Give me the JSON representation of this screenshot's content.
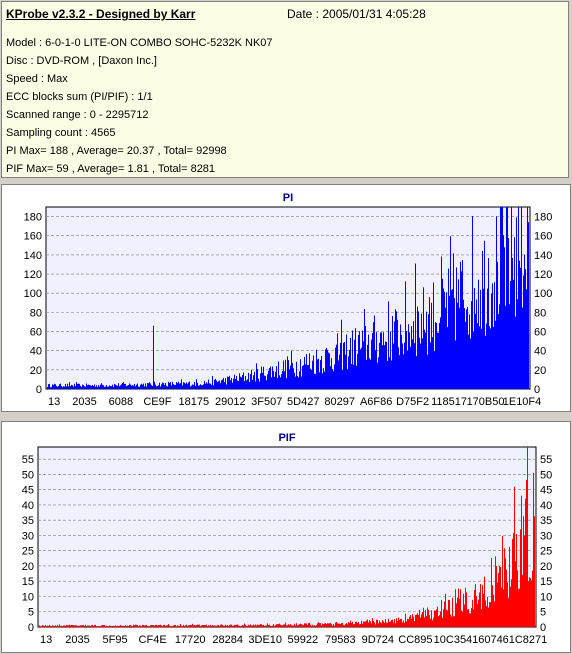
{
  "header": {
    "title": "KProbe v2.3.2 - Designed by Karr",
    "date": "Date : 2005/01/31 4:05:28"
  },
  "info_rows": [
    "Model : 6-0-1-0 LITE-ON COMBO SOHC-5232K NK07",
    "Disc : DVD-ROM ,  [Daxon Inc.]",
    "Speed : Max",
    "ECC blocks sum (PI/PIF) : 1/1",
    "Scanned range : 0 - 2295712",
    "Sampling count : 4565",
    "PI Max= 188 , Average= 20.37 , Total= 92998",
    "PIF Max= 59 , Average= 1.81 , Total= 8281"
  ],
  "chart_data": [
    {
      "type": "bar",
      "title": "PI",
      "color": "#0000ff",
      "ylim": [
        0,
        190
      ],
      "yticks": [
        0,
        20,
        40,
        60,
        80,
        100,
        120,
        140,
        160,
        180
      ],
      "xtick_labels": [
        "13",
        "2035",
        "6088",
        "CE9F",
        "18175",
        "29012",
        "3F507",
        "5D427",
        "80297",
        "A6F86",
        "D75F2",
        "118517",
        "170B50",
        "1E10F4"
      ],
      "grid": true,
      "samples": 4565,
      "envelope": [
        [
          0,
          4
        ],
        [
          0.1,
          4
        ],
        [
          0.2,
          5
        ],
        [
          0.3,
          6
        ],
        [
          0.35,
          8
        ],
        [
          0.4,
          12
        ],
        [
          0.45,
          18
        ],
        [
          0.5,
          24
        ],
        [
          0.55,
          30
        ],
        [
          0.6,
          38
        ],
        [
          0.65,
          48
        ],
        [
          0.7,
          56
        ],
        [
          0.75,
          66
        ],
        [
          0.8,
          80
        ],
        [
          0.85,
          98
        ],
        [
          0.9,
          118
        ],
        [
          0.95,
          140
        ],
        [
          1.0,
          160
        ]
      ],
      "spikes": [
        {
          "pos": 0.22,
          "value": 66
        },
        {
          "pos": 0.765,
          "value": 131
        },
        {
          "pos": 0.95,
          "value": 40
        },
        {
          "pos": 0.985,
          "value": 188
        }
      ],
      "max": 188
    },
    {
      "type": "bar",
      "title": "PIF",
      "color": "#ff0000",
      "ylim": [
        0,
        59
      ],
      "yticks": [
        0,
        5,
        10,
        15,
        20,
        25,
        30,
        35,
        40,
        45,
        50,
        55
      ],
      "xtick_labels": [
        "13",
        "2035",
        "5F95",
        "CF4E",
        "17720",
        "28284",
        "3DE10",
        "59922",
        "79583",
        "9D724",
        "CC895",
        "10C354",
        "160746",
        "1C8271"
      ],
      "grid": true,
      "samples": 4565,
      "envelope": [
        [
          0,
          0.5
        ],
        [
          0.4,
          0.6
        ],
        [
          0.5,
          0.8
        ],
        [
          0.6,
          1
        ],
        [
          0.7,
          2
        ],
        [
          0.75,
          3
        ],
        [
          0.8,
          5
        ],
        [
          0.85,
          8
        ],
        [
          0.9,
          12
        ],
        [
          0.93,
          16
        ],
        [
          0.96,
          24
        ],
        [
          1.0,
          32
        ]
      ],
      "spikes": [
        {
          "pos": 0.985,
          "value": 59
        },
        {
          "pos": 0.96,
          "value": 46
        }
      ],
      "max": 59
    }
  ]
}
